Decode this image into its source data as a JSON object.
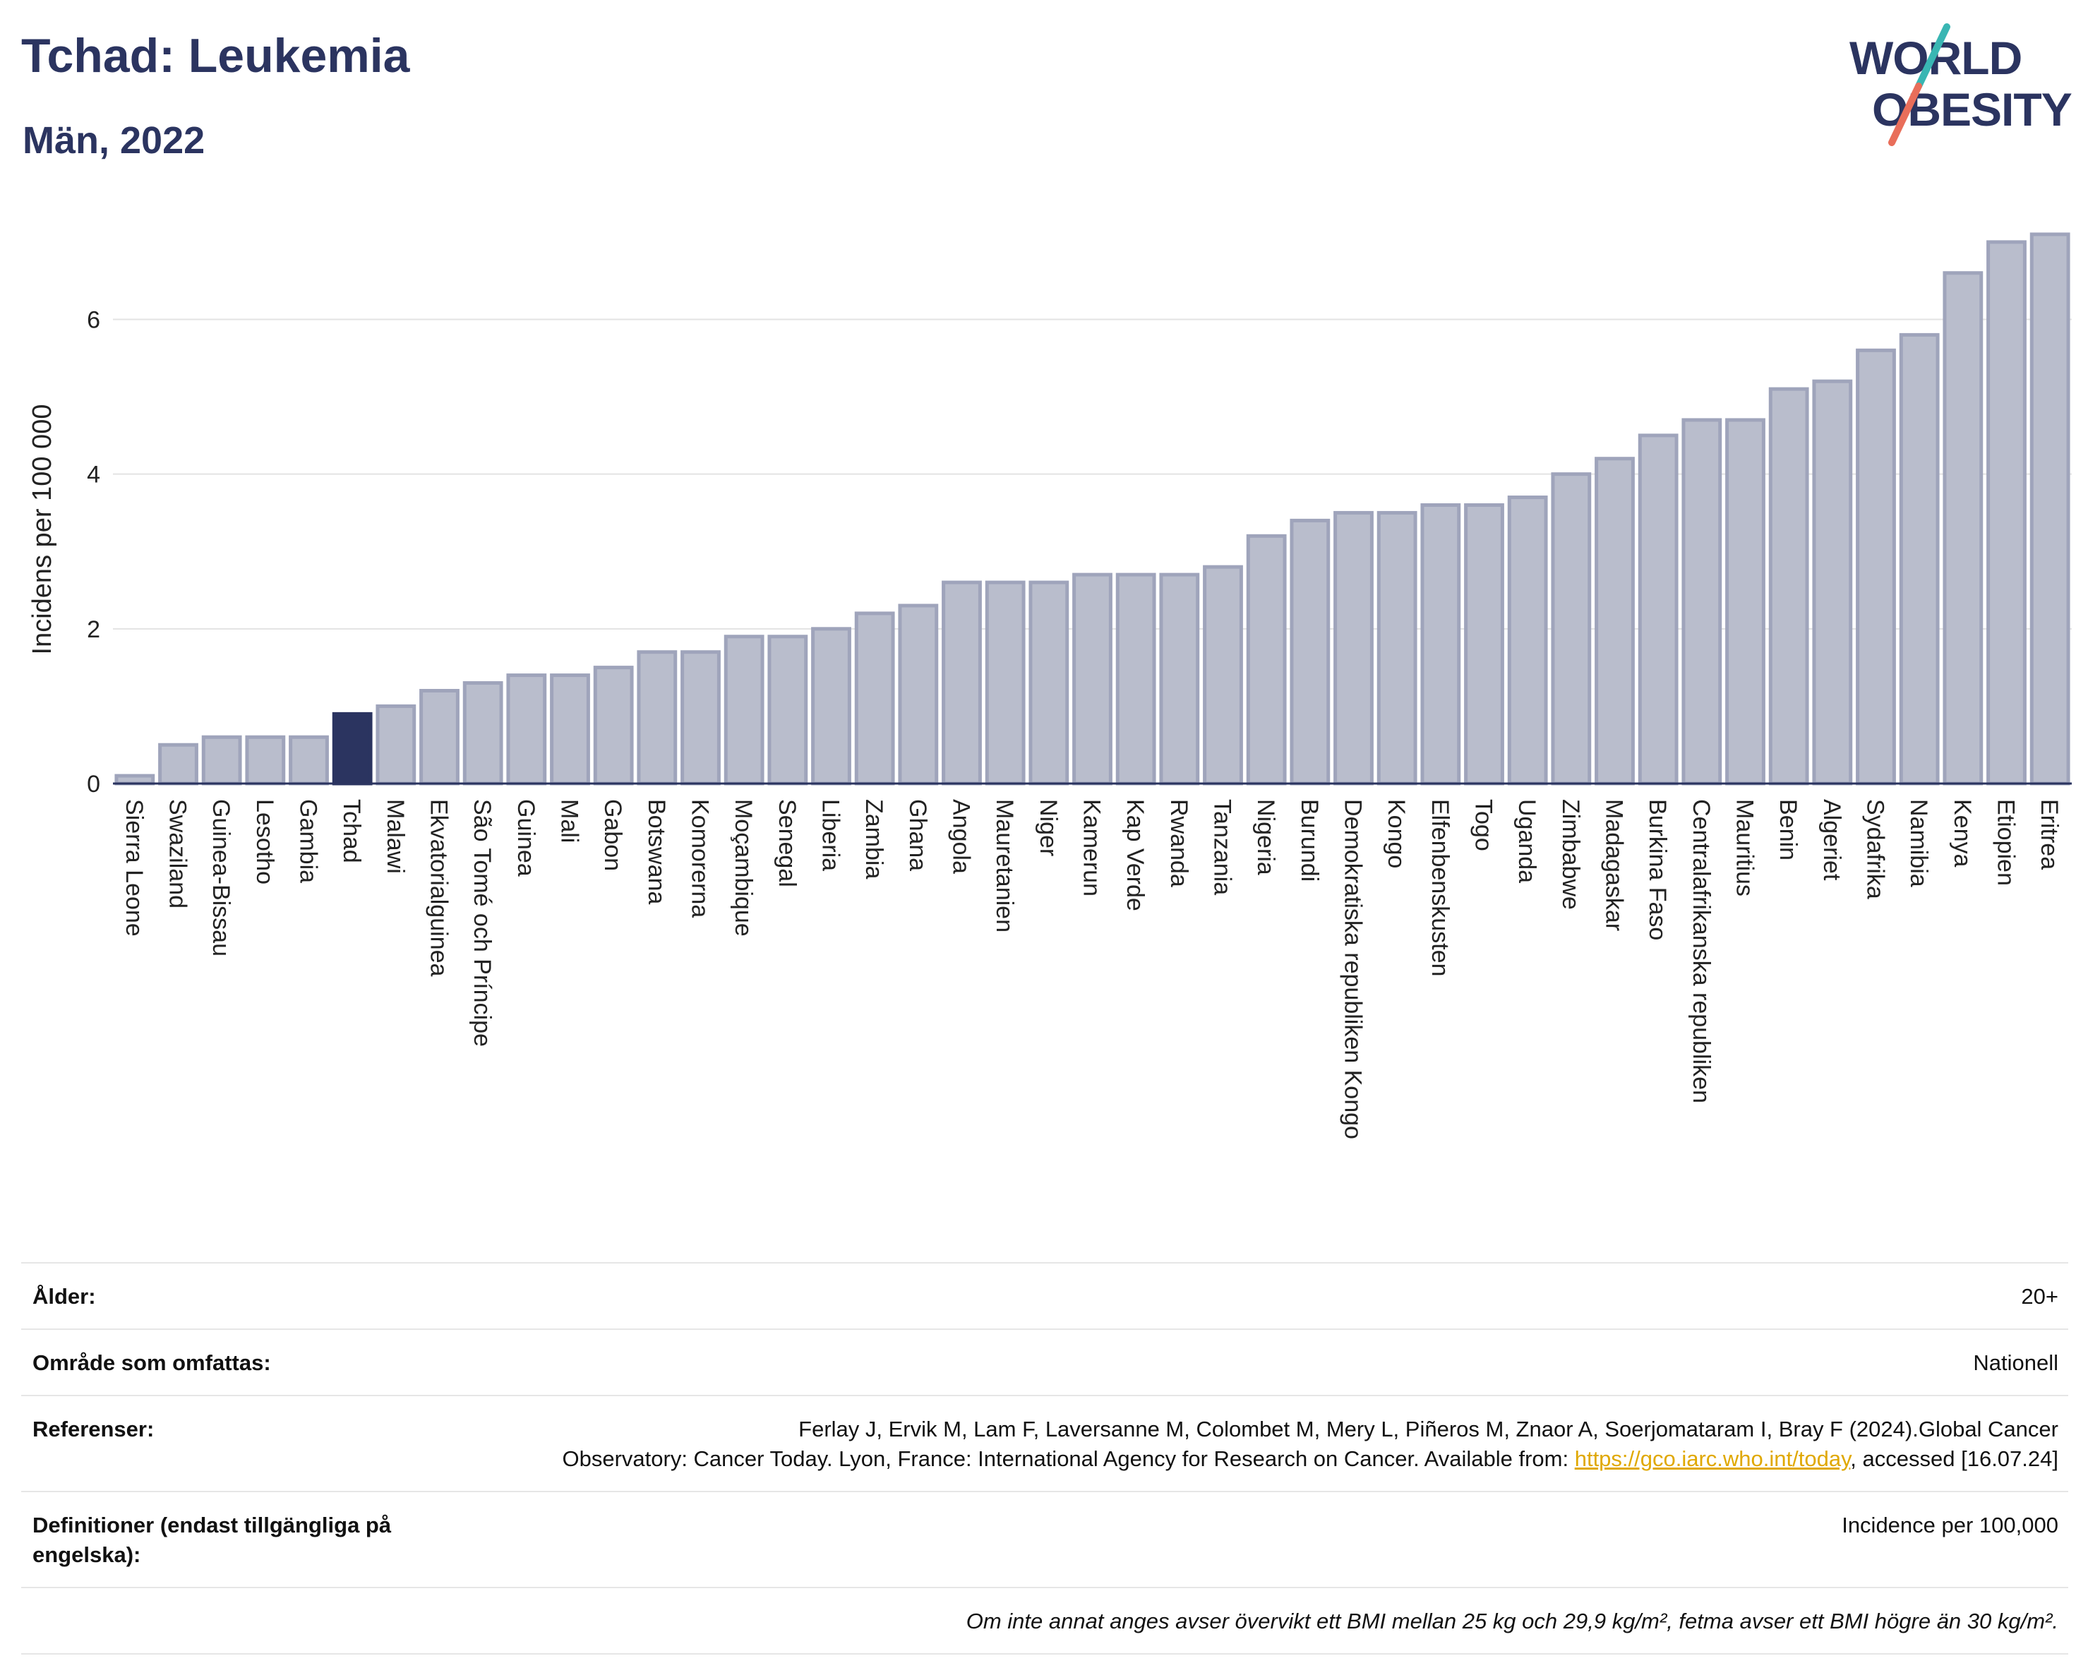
{
  "header": {
    "title": "Tchad: Leukemia",
    "subtitle": "Män, 2022",
    "logo_line1": "WORLD",
    "logo_line2": "OBESITY"
  },
  "colors": {
    "bar": "#b9bdcc",
    "bar_border": "#9fa4bb",
    "highlight": "#2b3460",
    "text_dark": "#2b3460",
    "grid": "#e3e3e3",
    "link": "#e0a800",
    "logo_teal": "#39b6b3",
    "logo_coral": "#e96e5a"
  },
  "chart_data": {
    "type": "bar",
    "ylabel": "Incidens per 100 000",
    "ylim": [
      0,
      7.3
    ],
    "yticks": [
      0,
      2,
      4,
      6
    ],
    "highlight": "Tchad",
    "grid": true,
    "categories": [
      "Sierra Leone",
      "Swaziland",
      "Guinea-Bissau",
      "Lesotho",
      "Gambia",
      "Tchad",
      "Malawi",
      "Ekvatorialguinea",
      "São Tomé och Príncipe",
      "Guinea",
      "Mali",
      "Gabon",
      "Botswana",
      "Komorerna",
      "Moçambique",
      "Senegal",
      "Liberia",
      "Zambia",
      "Ghana",
      "Angola",
      "Mauretanien",
      "Niger",
      "Kamerun",
      "Kap Verde",
      "Rwanda",
      "Tanzania",
      "Nigeria",
      "Burundi",
      "Demokratiska republiken Kongo",
      "Kongo",
      "Elfenbenskusten",
      "Togo",
      "Uganda",
      "Zimbabwe",
      "Madagaskar",
      "Burkina Faso",
      "Centralafrikanska republiken",
      "Mauritius",
      "Benin",
      "Algeriet",
      "Sydafrika",
      "Namibia",
      "Kenya",
      "Etiopien",
      "Eritrea"
    ],
    "values": [
      0.1,
      0.5,
      0.6,
      0.6,
      0.6,
      0.9,
      1.0,
      1.2,
      1.3,
      1.4,
      1.4,
      1.5,
      1.7,
      1.7,
      1.9,
      1.9,
      2.0,
      2.2,
      2.3,
      2.6,
      2.6,
      2.6,
      2.7,
      2.7,
      2.7,
      2.8,
      3.2,
      3.4,
      3.5,
      3.5,
      3.6,
      3.6,
      3.7,
      4.0,
      4.2,
      4.5,
      4.7,
      4.7,
      5.1,
      5.2,
      5.6,
      5.8,
      6.6,
      7.0,
      7.1
    ]
  },
  "meta": {
    "age_label": "Ålder:",
    "age_value": "20+",
    "area_label": "Område som omfattas:",
    "area_value": "Nationell",
    "refs_label": "Referenser:",
    "refs_text1": "Ferlay J, Ervik M, Lam F, Laversanne M, Colombet M, Mery L, Piñeros M, Znaor A, Soerjomataram I, Bray F (2024).Global Cancer",
    "refs_text2": "Observatory: Cancer Today. Lyon, France: International Agency for Research on Cancer. Available from:",
    "refs_link": "https://gco.iarc.who.int/today",
    "refs_text3": ", accessed [16.07.24]",
    "defs_label": "Definitioner (endast tillgängliga på engelska):",
    "defs_value": "Incidence per 100,000",
    "note": "Om inte annat anges avser övervikt ett BMI mellan 25 kg och 29,9 kg/m², fetma avser ett BMI högre än 30 kg/m²."
  }
}
